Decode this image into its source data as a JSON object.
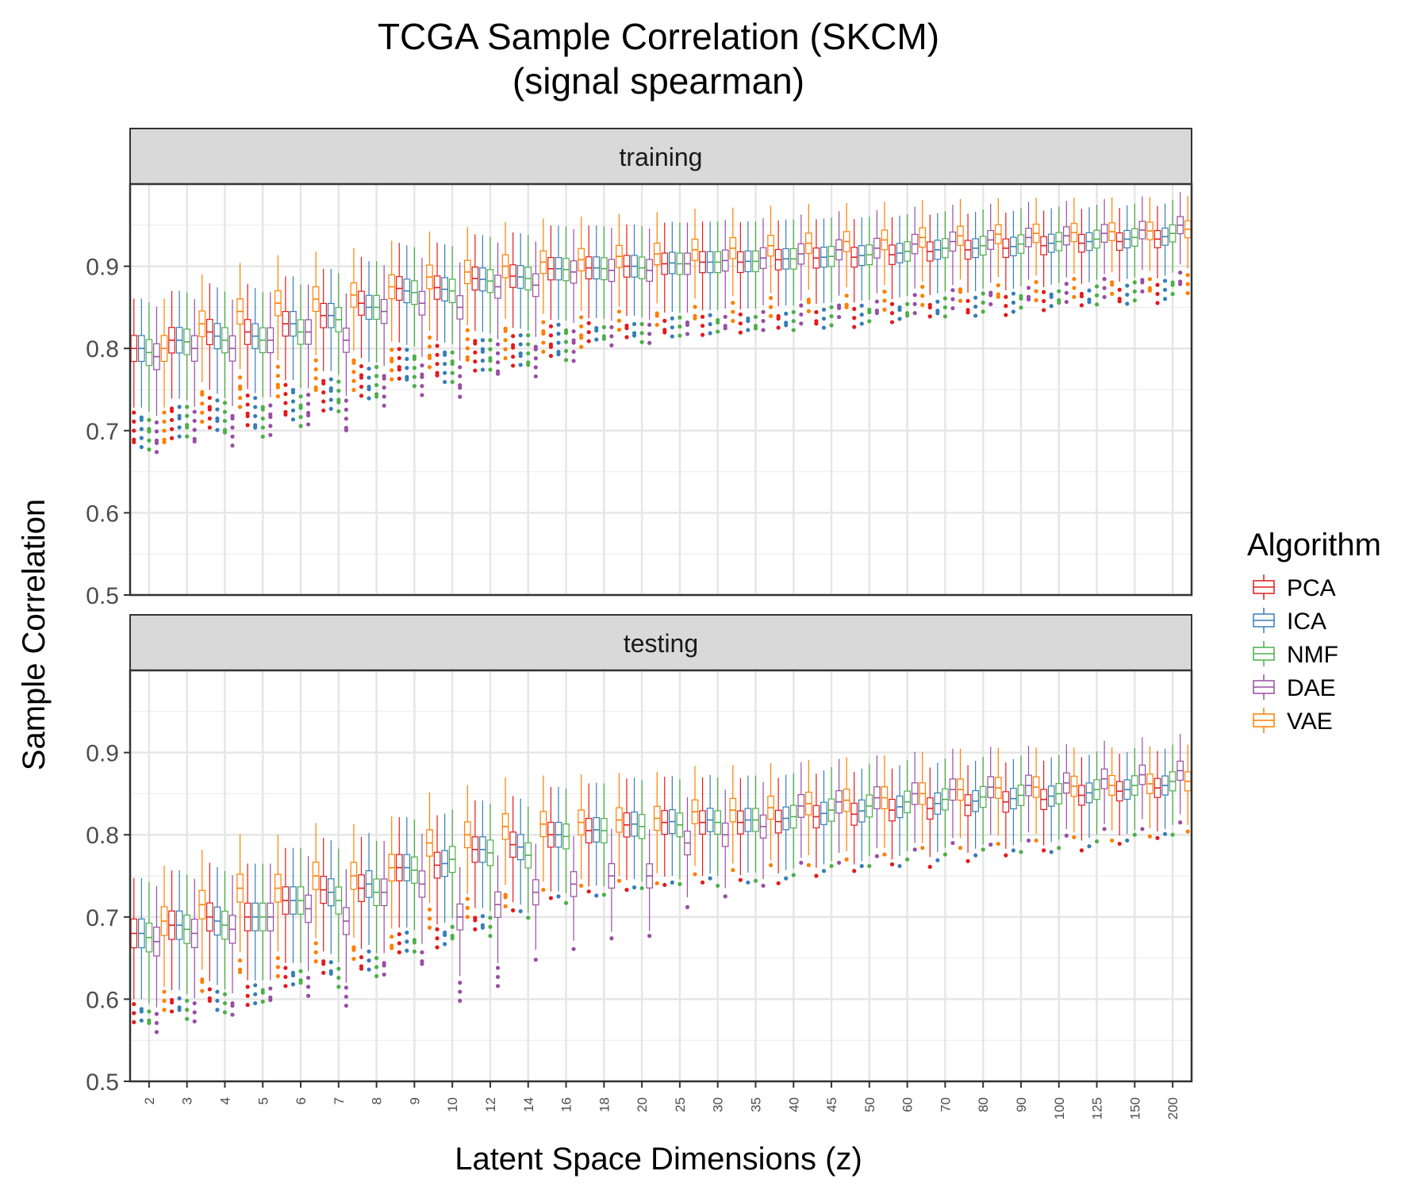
{
  "chart_data": {
    "type": "boxplot",
    "title": "TCGA Sample Correlation (SKCM)",
    "subtitle": "(signal spearman)",
    "xlabel": "Latent Space Dimensions (z)",
    "ylabel": "Sample Correlation",
    "ylim": [
      0.5,
      1.0
    ],
    "y_ticks": [
      0.5,
      0.6,
      0.7,
      0.8,
      0.9
    ],
    "categories": [
      "2",
      "3",
      "4",
      "5",
      "6",
      "7",
      "8",
      "9",
      "10",
      "12",
      "14",
      "16",
      "18",
      "20",
      "25",
      "30",
      "35",
      "40",
      "45",
      "50",
      "60",
      "70",
      "80",
      "90",
      "100",
      "125",
      "150",
      "200"
    ],
    "legend": {
      "title": "Algorithm",
      "placement": "right",
      "entries": [
        {
          "name": "PCA",
          "color": "#E41A1C"
        },
        {
          "name": "ICA",
          "color": "#377EB8"
        },
        {
          "name": "NMF",
          "color": "#4DAF4A"
        },
        {
          "name": "DAE",
          "color": "#984EA3"
        },
        {
          "name": "VAE",
          "color": "#FF7F00"
        }
      ]
    },
    "panels": [
      {
        "name": "training",
        "medians": {
          "PCA": [
            0.8,
            0.81,
            0.82,
            0.82,
            0.83,
            0.84,
            0.855,
            0.873,
            0.874,
            0.885,
            0.888,
            0.897,
            0.898,
            0.9,
            0.903,
            0.905,
            0.905,
            0.908,
            0.91,
            0.911,
            0.914,
            0.918,
            0.92,
            0.922,
            0.925,
            0.928,
            0.93,
            0.933
          ],
          "ICA": [
            0.8,
            0.81,
            0.815,
            0.815,
            0.83,
            0.84,
            0.85,
            0.87,
            0.872,
            0.884,
            0.887,
            0.897,
            0.898,
            0.9,
            0.904,
            0.905,
            0.906,
            0.909,
            0.911,
            0.913,
            0.916,
            0.92,
            0.922,
            0.924,
            0.928,
            0.93,
            0.933,
            0.936
          ],
          "NMF": [
            0.795,
            0.808,
            0.81,
            0.81,
            0.82,
            0.835,
            0.85,
            0.868,
            0.87,
            0.882,
            0.885,
            0.896,
            0.897,
            0.898,
            0.903,
            0.905,
            0.906,
            0.909,
            0.912,
            0.914,
            0.918,
            0.922,
            0.925,
            0.927,
            0.93,
            0.933,
            0.935,
            0.94
          ],
          "DAE": [
            0.79,
            0.8,
            0.8,
            0.81,
            0.82,
            0.81,
            0.845,
            0.855,
            0.85,
            0.875,
            0.877,
            0.893,
            0.895,
            0.895,
            0.903,
            0.907,
            0.91,
            0.915,
            0.92,
            0.922,
            0.927,
            0.93,
            0.932,
            0.935,
            0.937,
            0.94,
            0.944,
            0.95
          ],
          "VAE": [
            0.8,
            0.83,
            0.845,
            0.855,
            0.86,
            0.865,
            0.875,
            0.887,
            0.893,
            0.9,
            0.905,
            0.908,
            0.912,
            0.915,
            0.92,
            0.922,
            0.925,
            0.928,
            0.93,
            0.932,
            0.935,
            0.937,
            0.939,
            0.94,
            0.941,
            0.942,
            0.943,
            0.945
          ]
        }
      },
      {
        "name": "testing",
        "medians": {
          "PCA": [
            0.68,
            0.69,
            0.7,
            0.7,
            0.72,
            0.733,
            0.735,
            0.76,
            0.763,
            0.782,
            0.788,
            0.8,
            0.805,
            0.812,
            0.815,
            0.815,
            0.815,
            0.816,
            0.822,
            0.825,
            0.83,
            0.832,
            0.836,
            0.84,
            0.843,
            0.848,
            0.853,
            0.857
          ],
          "ICA": [
            0.68,
            0.69,
            0.695,
            0.7,
            0.72,
            0.73,
            0.74,
            0.76,
            0.765,
            0.782,
            0.785,
            0.8,
            0.806,
            0.813,
            0.816,
            0.818,
            0.818,
            0.82,
            0.826,
            0.829,
            0.834,
            0.838,
            0.841,
            0.844,
            0.847,
            0.851,
            0.855,
            0.86
          ],
          "NMF": [
            0.675,
            0.685,
            0.69,
            0.7,
            0.72,
            0.72,
            0.73,
            0.757,
            0.77,
            0.778,
            0.775,
            0.798,
            0.805,
            0.81,
            0.812,
            0.815,
            0.818,
            0.822,
            0.83,
            0.835,
            0.84,
            0.843,
            0.846,
            0.848,
            0.85,
            0.855,
            0.86,
            0.865
          ],
          "DAE": [
            0.67,
            0.68,
            0.685,
            0.7,
            0.71,
            0.695,
            0.73,
            0.74,
            0.7,
            0.715,
            0.73,
            0.74,
            0.75,
            0.75,
            0.79,
            0.8,
            0.81,
            0.835,
            0.84,
            0.845,
            0.85,
            0.855,
            0.858,
            0.86,
            0.863,
            0.868,
            0.873,
            0.878
          ],
          "VAE": [
            0.695,
            0.715,
            0.735,
            0.735,
            0.75,
            0.75,
            0.76,
            0.79,
            0.8,
            0.81,
            0.813,
            0.815,
            0.818,
            0.82,
            0.828,
            0.83,
            0.833,
            0.838,
            0.842,
            0.845,
            0.85,
            0.855,
            0.857,
            0.858,
            0.859,
            0.86,
            0.862,
            0.865
          ]
        }
      }
    ]
  }
}
